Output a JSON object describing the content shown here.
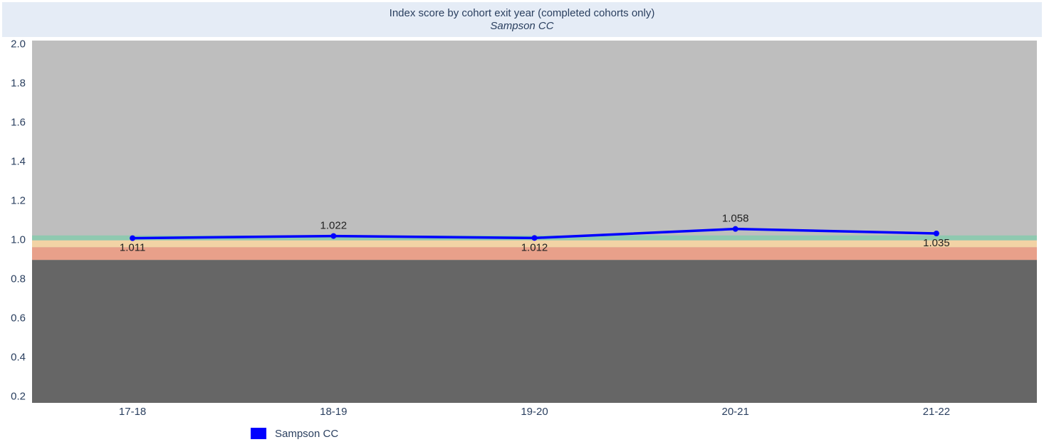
{
  "chart_data": {
    "type": "line",
    "title": "Index score by cohort exit year (completed cohorts only)",
    "subtitle": "Sampson CC",
    "categories": [
      "17-18",
      "18-19",
      "19-20",
      "20-21",
      "21-22"
    ],
    "series": [
      {
        "name": "Sampson CC",
        "color": "#0000ff",
        "values": [
          1.011,
          1.022,
          1.012,
          1.058,
          1.035
        ]
      }
    ],
    "ylim": [
      0.17,
      2.02
    ],
    "yticks": [
      0.2,
      0.4,
      0.6,
      0.8,
      {
        "value": 1,
        "label": "1.0"
      },
      1.2,
      1.4,
      1.6,
      1.8,
      {
        "value": 2,
        "label": "2.0"
      }
    ],
    "plot_background": "#bebebe",
    "bands": [
      {
        "upper": 0.9,
        "color": "#666666"
      },
      {
        "upper": 0.965,
        "color": "#e8a08a"
      },
      {
        "upper": 1.0,
        "color": "#f2d3a5"
      },
      {
        "upper": 1.025,
        "color": "#8fc9b0"
      }
    ],
    "legend": "bottom-left"
  }
}
